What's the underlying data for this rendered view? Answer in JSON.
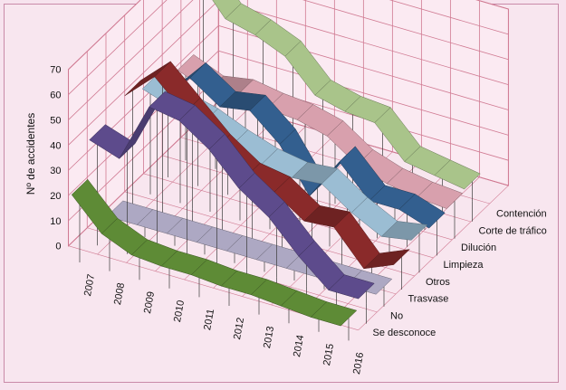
{
  "chart_data": {
    "type": "line",
    "subtype": "3d-ribbon",
    "title": "",
    "ylabel": "Nº de accidentes",
    "xlabel": "",
    "ylim": [
      0,
      70
    ],
    "yticks": [
      0,
      10,
      20,
      30,
      40,
      50,
      60,
      70
    ],
    "categories": [
      "2007",
      "2008",
      "2009",
      "2010",
      "2011",
      "2012",
      "2013",
      "2014",
      "2015",
      "2016"
    ],
    "grid": true,
    "series": [
      {
        "name": "Contención",
        "color": "#a9c48a",
        "values": [
          62,
          48,
          45,
          40,
          28,
          25,
          24,
          12,
          10,
          8
        ]
      },
      {
        "name": "Corte de tráfico",
        "color": "#d8a0ad",
        "values": [
          31,
          26,
          28,
          26,
          25,
          22,
          14,
          10,
          8,
          7
        ]
      },
      {
        "name": "Dilución",
        "color": "#335f8f",
        "values": [
          25,
          38,
          30,
          32,
          22,
          5,
          22,
          10,
          10,
          6
        ]
      },
      {
        "name": "Limpieza",
        "color": "#9bbdd3",
        "values": [
          37,
          33,
          30,
          25,
          21,
          19,
          20,
          12,
          6,
          8
        ]
      },
      {
        "name": "Otros",
        "color": "#8a2a2a",
        "values": [
          41,
          52,
          41,
          30,
          22,
          20,
          12,
          13,
          0,
          5
        ]
      },
      {
        "name": "Trasvase",
        "color": "#ada8c3",
        "values": [
          0,
          0,
          0,
          0,
          0,
          0,
          0,
          0,
          0,
          0
        ]
      },
      {
        "name": "No",
        "color": "#5d4b8c",
        "values": [
          37,
          33,
          57,
          55,
          47,
          35,
          27,
          15,
          5,
          5
        ]
      },
      {
        "name": "Se desconoce",
        "color": "#5e8b36",
        "values": [
          22,
          10,
          5,
          4,
          4,
          3,
          3,
          2,
          1,
          1
        ]
      }
    ]
  }
}
